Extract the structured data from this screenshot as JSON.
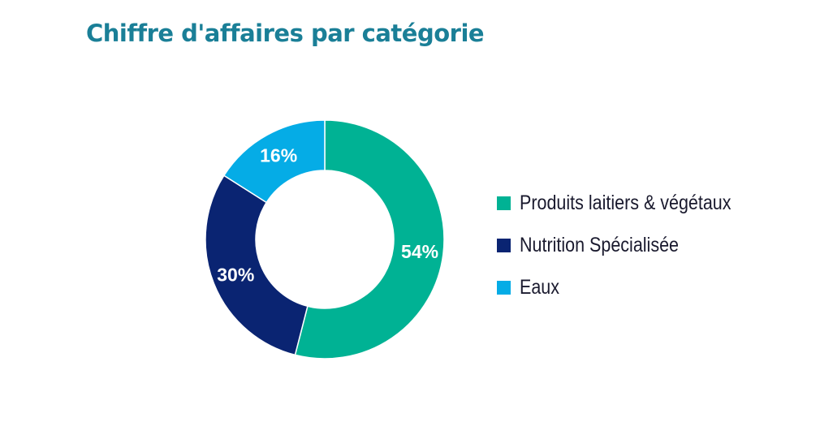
{
  "title": "Chiffre d'affaires par catégorie",
  "title_color": "#1a7f97",
  "chart_data": {
    "type": "pie",
    "variant": "donut",
    "title": "Chiffre d'affaires par catégorie",
    "legend_position": "right",
    "unit": "%",
    "slices": [
      {
        "label": "Produits laitiers & végétaux",
        "value": 54,
        "display": "54%",
        "color": "#00b294"
      },
      {
        "label": "Nutrition Spécialisée",
        "value": 30,
        "display": "30%",
        "color": "#0a2472"
      },
      {
        "label": "Eaux",
        "value": 16,
        "display": "16%",
        "color": "#05ace6"
      }
    ]
  }
}
